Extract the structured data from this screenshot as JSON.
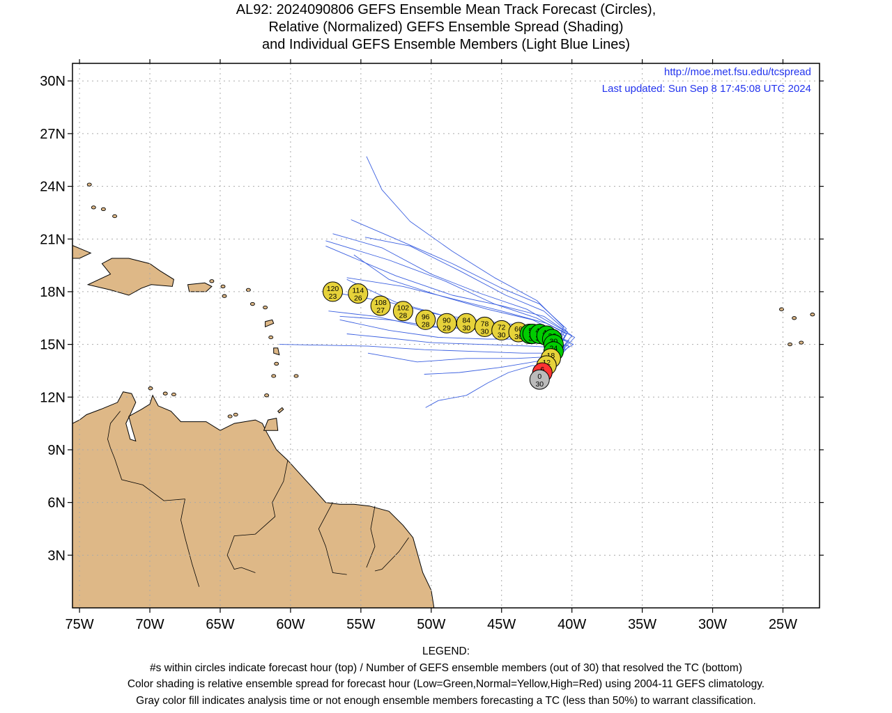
{
  "title_lines": [
    "AL92: 2024090806 GEFS Ensemble Mean Track Forecast (Circles),",
    "Relative (Normalized) GEFS Ensemble Spread (Shading)",
    "and Individual GEFS Ensemble Members (Light Blue Lines)"
  ],
  "source_url": "http://moe.met.fsu.edu/tcspread",
  "last_updated": "Last updated: Sun Sep 8 17:45:08 UTC 2024",
  "axes": {
    "lon_ticks": [
      {
        "lon": -75,
        "label": "75W"
      },
      {
        "lon": -70,
        "label": "70W"
      },
      {
        "lon": -65,
        "label": "65W"
      },
      {
        "lon": -60,
        "label": "60W"
      },
      {
        "lon": -55,
        "label": "55W"
      },
      {
        "lon": -50,
        "label": "50W"
      },
      {
        "lon": -45,
        "label": "45W"
      },
      {
        "lon": -40,
        "label": "40W"
      },
      {
        "lon": -35,
        "label": "35W"
      },
      {
        "lon": -30,
        "label": "30W"
      },
      {
        "lon": -25,
        "label": "25W"
      }
    ],
    "lat_ticks": [
      {
        "lat": 30,
        "label": "30N"
      },
      {
        "lat": 27,
        "label": "27N"
      },
      {
        "lat": 24,
        "label": "24N"
      },
      {
        "lat": 21,
        "label": "21N"
      },
      {
        "lat": 18,
        "label": "18N"
      },
      {
        "lat": 15,
        "label": "15N"
      },
      {
        "lat": 12,
        "label": "12N"
      },
      {
        "lat": 9,
        "label": "9N"
      },
      {
        "lat": 6,
        "label": "6N"
      },
      {
        "lat": 3,
        "label": "3N"
      }
    ],
    "lon_range": [
      -75.5,
      -22.4
    ],
    "lat_range": [
      0,
      31
    ]
  },
  "colors": {
    "land": "#deb887",
    "coast": "#000000",
    "member_lines": "#3a5fe0",
    "grid": "#a9a9a9",
    "spread_low": "#00cc00",
    "spread_normal": "#e6d23a",
    "spread_high": "#ff3333",
    "analysis": "#bbbbbb",
    "info_text": "#2233ee"
  },
  "mean_track": [
    {
      "hour": "0",
      "members": "30",
      "lat": 13.0,
      "lon": -42.3,
      "spread": "gray"
    },
    {
      "hour": "6",
      "members": "30",
      "lat": 13.4,
      "lon": -42.1,
      "spread": "high"
    },
    {
      "hour": "12",
      "members": "30",
      "lat": 13.8,
      "lon": -41.8,
      "spread": "normal"
    },
    {
      "hour": "18",
      "members": "30",
      "lat": 14.2,
      "lon": -41.5,
      "spread": "normal"
    },
    {
      "hour": "24",
      "members": "30",
      "lat": 14.6,
      "lon": -41.3,
      "spread": "low"
    },
    {
      "hour": "30",
      "members": "30",
      "lat": 15.0,
      "lon": -41.3,
      "spread": "low"
    },
    {
      "hour": "36",
      "members": "30",
      "lat": 15.3,
      "lon": -41.4,
      "spread": "low"
    },
    {
      "hour": "42",
      "members": "30",
      "lat": 15.5,
      "lon": -41.8,
      "spread": "low"
    },
    {
      "hour": "48",
      "members": "30",
      "lat": 15.6,
      "lon": -42.3,
      "spread": "low"
    },
    {
      "hour": "54",
      "members": "30",
      "lat": 15.6,
      "lon": -42.8,
      "spread": "low"
    },
    {
      "hour": "60",
      "members": "30",
      "lat": 15.6,
      "lon": -43.0,
      "spread": "low"
    },
    {
      "hour": "66",
      "members": "30",
      "lat": 15.7,
      "lon": -43.8,
      "spread": "normal"
    },
    {
      "hour": "72",
      "members": "30",
      "lat": 15.8,
      "lon": -45.0,
      "spread": "normal"
    },
    {
      "hour": "78",
      "members": "30",
      "lat": 16.0,
      "lon": -46.2,
      "spread": "normal"
    },
    {
      "hour": "84",
      "members": "30",
      "lat": 16.2,
      "lon": -47.5,
      "spread": "normal"
    },
    {
      "hour": "90",
      "members": "29",
      "lat": 16.2,
      "lon": -48.9,
      "spread": "normal"
    },
    {
      "hour": "96",
      "members": "28",
      "lat": 16.4,
      "lon": -50.4,
      "spread": "normal"
    },
    {
      "hour": "102",
      "members": "28",
      "lat": 16.9,
      "lon": -52.0,
      "spread": "normal"
    },
    {
      "hour": "108",
      "members": "27",
      "lat": 17.2,
      "lon": -53.6,
      "spread": "normal"
    },
    {
      "hour": "114",
      "members": "26",
      "lat": 17.9,
      "lon": -55.2,
      "spread": "normal"
    },
    {
      "hour": "120",
      "members": "23",
      "lat": 18.0,
      "lon": -57.0,
      "spread": "normal"
    }
  ],
  "members": [
    [
      [
        -42.5,
        12.7
      ],
      [
        -41.3,
        14.6
      ],
      [
        -40.6,
        16.0
      ],
      [
        -42.5,
        17.5
      ],
      [
        -45.5,
        18.8
      ],
      [
        -48.5,
        20.3
      ],
      [
        -51.5,
        22.0
      ],
      [
        -53.5,
        23.8
      ],
      [
        -54.6,
        25.7
      ]
    ],
    [
      [
        -42.5,
        12.7
      ],
      [
        -41.2,
        14.7
      ],
      [
        -40.4,
        15.9
      ],
      [
        -42.3,
        17.3
      ],
      [
        -45.0,
        18.2
      ],
      [
        -48.5,
        19.6
      ],
      [
        -52.5,
        21.0
      ],
      [
        -55.7,
        22.1
      ]
    ],
    [
      [
        -42.5,
        12.7
      ],
      [
        -41.2,
        14.8
      ],
      [
        -40.6,
        15.8
      ],
      [
        -43.2,
        17.0
      ],
      [
        -46.5,
        17.9
      ],
      [
        -50.0,
        19.0
      ],
      [
        -53.5,
        20.5
      ],
      [
        -57.0,
        21.3
      ]
    ],
    [
      [
        -42.5,
        12.7
      ],
      [
        -41.0,
        14.7
      ],
      [
        -40.3,
        15.7
      ],
      [
        -42.0,
        16.9
      ],
      [
        -44.7,
        17.8
      ],
      [
        -48.0,
        19.2
      ],
      [
        -51.5,
        20.6
      ],
      [
        -54.7,
        21.1
      ]
    ],
    [
      [
        -42.5,
        12.7
      ],
      [
        -41.2,
        14.5
      ],
      [
        -40.4,
        15.6
      ],
      [
        -42.5,
        16.5
      ],
      [
        -45.5,
        17.3
      ],
      [
        -49.0,
        18.6
      ],
      [
        -53.0,
        19.8
      ],
      [
        -57.5,
        20.9
      ]
    ],
    [
      [
        -42.5,
        12.7
      ],
      [
        -41.0,
        14.5
      ],
      [
        -40.0,
        15.5
      ],
      [
        -42.0,
        16.6
      ],
      [
        -45.0,
        17.2
      ],
      [
        -48.5,
        17.8
      ],
      [
        -52.5,
        18.9
      ],
      [
        -57.5,
        20.6
      ]
    ],
    [
      [
        -42.5,
        12.7
      ],
      [
        -41.0,
        14.4
      ],
      [
        -39.8,
        15.4
      ],
      [
        -41.8,
        16.2
      ],
      [
        -45.0,
        16.9
      ],
      [
        -48.5,
        17.6
      ],
      [
        -52.0,
        18.3
      ],
      [
        -56.0,
        18.8
      ]
    ],
    [
      [
        -42.5,
        12.7
      ],
      [
        -41.1,
        14.3
      ],
      [
        -40.3,
        15.2
      ],
      [
        -42.5,
        16.0
      ],
      [
        -46.0,
        16.3
      ],
      [
        -49.5,
        16.7
      ],
      [
        -53.0,
        17.4
      ],
      [
        -56.5,
        17.9
      ]
    ],
    [
      [
        -42.5,
        12.7
      ],
      [
        -41.0,
        14.4
      ],
      [
        -40.2,
        15.2
      ],
      [
        -42.7,
        15.6
      ],
      [
        -46.0,
        15.8
      ],
      [
        -49.5,
        16.0
      ],
      [
        -53.0,
        16.4
      ],
      [
        -56.5,
        16.6
      ]
    ],
    [
      [
        -42.5,
        12.7
      ],
      [
        -41.0,
        14.2
      ],
      [
        -40.2,
        14.9
      ],
      [
        -42.5,
        15.3
      ],
      [
        -46.0,
        15.3
      ],
      [
        -49.5,
        15.4
      ],
      [
        -53.0,
        15.8
      ],
      [
        -56.5,
        16.4
      ]
    ],
    [
      [
        -42.5,
        12.7
      ],
      [
        -41.0,
        14.2
      ],
      [
        -40.5,
        14.8
      ],
      [
        -43.0,
        14.9
      ],
      [
        -46.5,
        15.0
      ],
      [
        -50.0,
        15.1
      ],
      [
        -53.5,
        15.4
      ],
      [
        -56.0,
        15.6
      ]
    ],
    [
      [
        -42.5,
        12.7
      ],
      [
        -41.2,
        14.0
      ],
      [
        -41.0,
        14.5
      ],
      [
        -43.5,
        14.5
      ],
      [
        -47.0,
        14.6
      ],
      [
        -50.5,
        14.7
      ],
      [
        -54.5,
        14.9
      ],
      [
        -60.8,
        15.0
      ]
    ],
    [
      [
        -42.5,
        12.7
      ],
      [
        -41.3,
        13.9
      ],
      [
        -41.5,
        14.3
      ],
      [
        -44.0,
        14.2
      ],
      [
        -47.5,
        14.2
      ],
      [
        -51.0,
        14.0
      ],
      [
        -54.5,
        14.5
      ]
    ],
    [
      [
        -42.5,
        12.7
      ],
      [
        -41.4,
        13.8
      ],
      [
        -42.0,
        14.1
      ],
      [
        -45.0,
        13.7
      ],
      [
        -48.0,
        13.4
      ],
      [
        -50.5,
        13.3
      ]
    ],
    [
      [
        -42.5,
        12.7
      ],
      [
        -41.5,
        13.7
      ],
      [
        -42.8,
        13.8
      ],
      [
        -44.5,
        13.4
      ],
      [
        -46.0,
        12.8
      ],
      [
        -47.5,
        12.1
      ],
      [
        -49.5,
        11.8
      ],
      [
        -50.4,
        11.4
      ]
    ],
    [
      [
        -42.5,
        12.7
      ],
      [
        -41.3,
        14.3
      ],
      [
        -39.9,
        15.0
      ],
      [
        -42.0,
        15.7
      ],
      [
        -45.0,
        16.0
      ],
      [
        -48.5,
        16.5
      ],
      [
        -52.5,
        17.4
      ],
      [
        -56.0,
        18.7
      ]
    ],
    [
      [
        -42.5,
        12.7
      ],
      [
        -41.1,
        14.6
      ],
      [
        -40.5,
        15.5
      ],
      [
        -42.8,
        16.4
      ],
      [
        -46.0,
        17.0
      ],
      [
        -49.5,
        17.8
      ],
      [
        -53.0,
        18.7
      ],
      [
        -55.5,
        20.1
      ]
    ],
    [
      [
        -42.5,
        12.7
      ],
      [
        -41.2,
        14.5
      ],
      [
        -40.7,
        15.3
      ],
      [
        -43.5,
        15.7
      ],
      [
        -47.0,
        15.9
      ],
      [
        -50.5,
        16.0
      ],
      [
        -54.0,
        16.6
      ],
      [
        -57.3,
        16.9
      ]
    ]
  ],
  "legend_lines": [
    "LEGEND:",
    "#s within circles indicate forecast hour (top) / Number of GEFS ensemble members (out of 30) that resolved the TC (bottom)",
    "Color shading is relative ensemble spread for forecast hour (Low=Green,Normal=Yellow,High=Red) using 2004-11 GEFS climatology.",
    "Gray color fill indicates analysis time or not enough ensemble members forecasting a TC (less than 50%) to warrant classification."
  ]
}
